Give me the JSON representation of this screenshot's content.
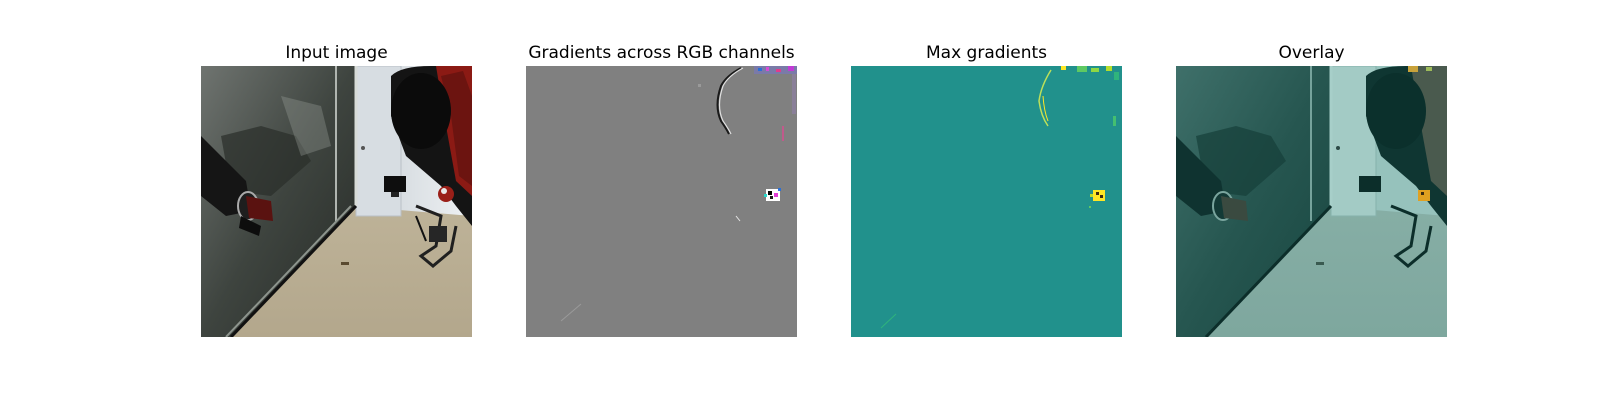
{
  "panels": [
    {
      "title": "Input image"
    },
    {
      "title": "Gradients across RGB channels"
    },
    {
      "title": "Max gradients"
    },
    {
      "title": "Overlay"
    }
  ],
  "colors": {
    "background": "#ffffff",
    "gradient_gray": "#808080",
    "max_gradient_teal": "#21918c",
    "highlight_yellow": "#fde725",
    "robot_red": "#8b1a14",
    "floor_beige": "#bfb49a"
  }
}
